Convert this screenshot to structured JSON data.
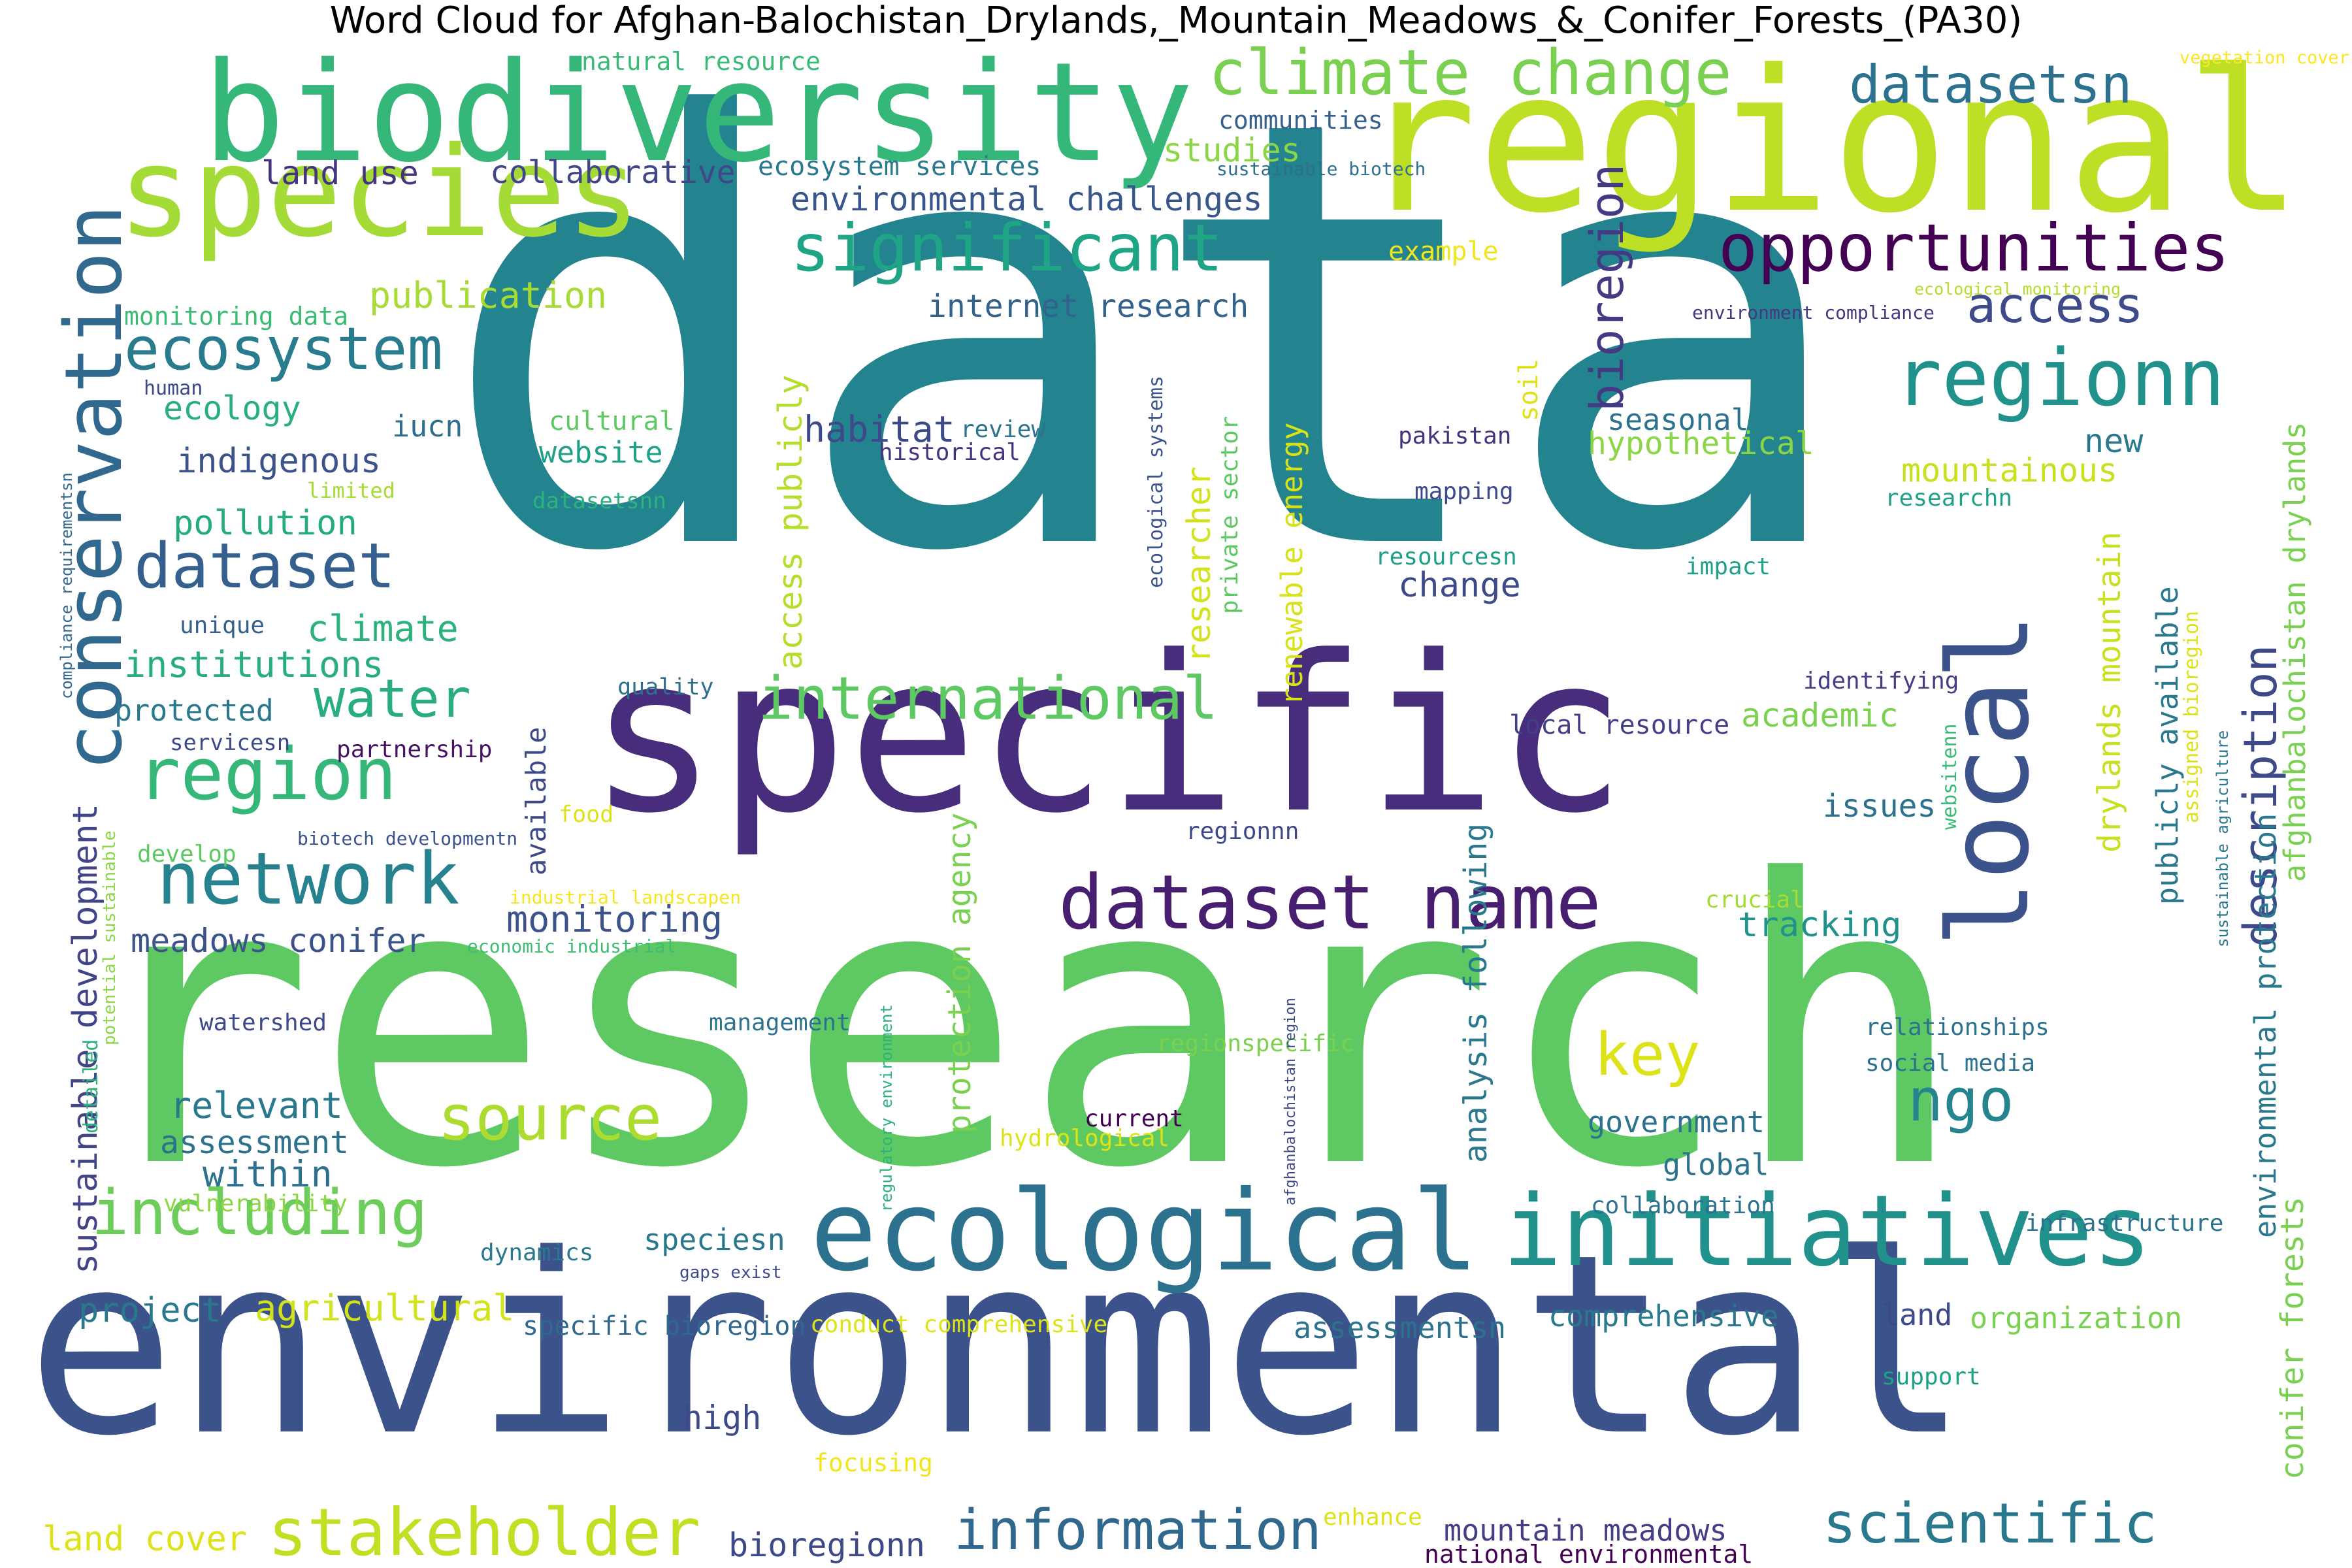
{
  "title": "Word Cloud for Afghan-Balochistan_Drylands,_Mountain_Meadows_&_Conifer_Forests_(PA30)",
  "colors": {
    "background": "#ffffff",
    "title": "#000000"
  },
  "words": [
    {
      "text": "data",
      "color": "#23838e"
    },
    {
      "text": "research",
      "color": "#5ec962"
    },
    {
      "text": "environmental",
      "color": "#3b528b"
    },
    {
      "text": "regional",
      "color": "#bddf26"
    },
    {
      "text": "specific",
      "color": "#472d7b"
    },
    {
      "text": "biodiversity",
      "color": "#35b779"
    },
    {
      "text": "species",
      "color": "#a5db36"
    },
    {
      "text": "ecological",
      "color": "#2c728e"
    },
    {
      "text": "initiatives",
      "color": "#21918c"
    },
    {
      "text": "local",
      "color": "#3b528b"
    },
    {
      "text": "conservation",
      "color": "#31688e"
    },
    {
      "text": "dataset name",
      "color": "#481f70"
    },
    {
      "text": "climate change",
      "color": "#7ad151"
    },
    {
      "text": "opportunities",
      "color": "#440154"
    },
    {
      "text": "significant",
      "color": "#20a486"
    },
    {
      "text": "regionn",
      "color": "#21918c"
    },
    {
      "text": "international",
      "color": "#5ec962"
    },
    {
      "text": "information",
      "color": "#31688e"
    },
    {
      "text": "stakeholder",
      "color": "#c2df23"
    },
    {
      "text": "scientific",
      "color": "#2a788e"
    },
    {
      "text": "ecosystem",
      "color": "#287c8e"
    },
    {
      "text": "dataset",
      "color": "#355f8d"
    },
    {
      "text": "region",
      "color": "#35b779"
    },
    {
      "text": "network",
      "color": "#26828e"
    },
    {
      "text": "including",
      "color": "#6ccd5a"
    },
    {
      "text": "source",
      "color": "#addc30"
    },
    {
      "text": "description",
      "color": "#3e4989"
    },
    {
      "text": "bioregion",
      "color": "#443983"
    },
    {
      "text": "datasetsn",
      "color": "#2c728e"
    },
    {
      "text": "access",
      "color": "#3e4a89"
    },
    {
      "text": "water",
      "color": "#27ad81"
    },
    {
      "text": "key",
      "color": "#dde318"
    },
    {
      "text": "ngo",
      "color": "#25848e"
    },
    {
      "text": "mountain meadows",
      "color": "#433e85"
    },
    {
      "text": "environmental challenges",
      "color": "#39568c"
    },
    {
      "text": "internet research",
      "color": "#33638d"
    },
    {
      "text": "land use",
      "color": "#46337e"
    },
    {
      "text": "collaborative",
      "color": "#404688"
    },
    {
      "text": "publication",
      "color": "#a8db34"
    },
    {
      "text": "studies",
      "color": "#8bd646"
    },
    {
      "text": "ecosystem services",
      "color": "#2a788e"
    },
    {
      "text": "natural resource",
      "color": "#3aba76"
    },
    {
      "text": "communities",
      "color": "#355f8d"
    },
    {
      "text": "sustainable biotech",
      "color": "#2e6f8e"
    },
    {
      "text": "example",
      "color": "#f1e51d"
    },
    {
      "text": "vegetation cover",
      "color": "#fde725"
    },
    {
      "text": "ecological monitoring",
      "color": "#b5de2b"
    },
    {
      "text": "environment compliance",
      "color": "#453781"
    },
    {
      "text": "monitoring data",
      "color": "#3bbb75"
    },
    {
      "text": "ecology",
      "color": "#29af7f"
    },
    {
      "text": "iucn",
      "color": "#2e6e8e"
    },
    {
      "text": "human",
      "color": "#3e4989"
    },
    {
      "text": "limited",
      "color": "#a5db36"
    },
    {
      "text": "indigenous",
      "color": "#3b528b"
    },
    {
      "text": "pollution",
      "color": "#25ab82"
    },
    {
      "text": "unique",
      "color": "#355f8d"
    },
    {
      "text": "climate",
      "color": "#2db27d"
    },
    {
      "text": "institutions",
      "color": "#27ad81"
    },
    {
      "text": "protected",
      "color": "#2a788e"
    },
    {
      "text": "servicesn",
      "color": "#3e4989"
    },
    {
      "text": "partnership",
      "color": "#471164"
    },
    {
      "text": "habitat",
      "color": "#3e4989"
    },
    {
      "text": "review",
      "color": "#2c728e"
    },
    {
      "text": "historical",
      "color": "#46327e"
    },
    {
      "text": "website",
      "color": "#1fa088"
    },
    {
      "text": "cultural",
      "color": "#5ec962"
    },
    {
      "text": "datasetsnn",
      "color": "#2db27d"
    },
    {
      "text": "access publicly",
      "color": "#b5de2b"
    },
    {
      "text": "available",
      "color": "#3e4989"
    },
    {
      "text": "quality",
      "color": "#2e6f8e"
    },
    {
      "text": "food",
      "color": "#dde318"
    },
    {
      "text": "develop",
      "color": "#5ec962"
    },
    {
      "text": "industrial landscapen",
      "color": "#f6e620"
    },
    {
      "text": "economic industrial",
      "color": "#3fbc73"
    },
    {
      "text": "biotech developmentn",
      "color": "#3b528b"
    },
    {
      "text": "monitoring",
      "color": "#3b528b"
    },
    {
      "text": "meadows conifer",
      "color": "#3b528b"
    },
    {
      "text": "relevant",
      "color": "#2a788e"
    },
    {
      "text": "assessment",
      "color": "#2c728e"
    },
    {
      "text": "within",
      "color": "#2c728e"
    },
    {
      "text": "vulnerability",
      "color": "#8bd646"
    },
    {
      "text": "dynamics",
      "color": "#2a788e"
    },
    {
      "text": "gaps exist",
      "color": "#3e4989"
    },
    {
      "text": "project",
      "color": "#2a788e"
    },
    {
      "text": "agricultural",
      "color": "#d2e21b"
    },
    {
      "text": "land cover",
      "color": "#dde318"
    },
    {
      "text": "bioregionn",
      "color": "#3e4989"
    },
    {
      "text": "watershed",
      "color": "#3e4989"
    },
    {
      "text": "management",
      "color": "#2c728e"
    },
    {
      "text": "sustainable development",
      "color": "#414487"
    },
    {
      "text": "potential sustainable",
      "color": "#8bd646"
    },
    {
      "text": "detailed",
      "color": "#2db27d"
    },
    {
      "text": "compliance requirementsn",
      "color": "#31688e"
    },
    {
      "text": "regulatory environment",
      "color": "#2db27d"
    },
    {
      "text": "protection agency",
      "color": "#7ad151"
    },
    {
      "text": "current",
      "color": "#440154"
    },
    {
      "text": "hydrological",
      "color": "#dde318"
    },
    {
      "text": "regionspecific",
      "color": "#7ad151"
    },
    {
      "text": "specific bioregion",
      "color": "#31688e"
    },
    {
      "text": "conduct comprehensive",
      "color": "#dde318"
    },
    {
      "text": "speciesn",
      "color": "#2a788e"
    },
    {
      "text": "high",
      "color": "#3e4989"
    },
    {
      "text": "focusing",
      "color": "#f1e51d"
    },
    {
      "text": "enhance",
      "color": "#dde318"
    },
    {
      "text": "national environmental",
      "color": "#440154"
    },
    {
      "text": "renewable energy",
      "color": "#d8e219"
    },
    {
      "text": "researcher",
      "color": "#d2e21b"
    },
    {
      "text": "private sector",
      "color": "#5ec962"
    },
    {
      "text": "ecological systems",
      "color": "#3b528b"
    },
    {
      "text": "analysis following",
      "color": "#2a788e"
    },
    {
      "text": "local resource",
      "color": "#433e85"
    },
    {
      "text": "regionnn",
      "color": "#3e4989"
    },
    {
      "text": "change",
      "color": "#3e4989"
    },
    {
      "text": "pakistan",
      "color": "#46337e"
    },
    {
      "text": "mapping",
      "color": "#3e4989"
    },
    {
      "text": "resourcesn",
      "color": "#1fa088"
    },
    {
      "text": "soil",
      "color": "#dde318"
    },
    {
      "text": "seasonal",
      "color": "#2c728e"
    },
    {
      "text": "hypothetical",
      "color": "#8bd646"
    },
    {
      "text": "mountainous",
      "color": "#c8e020"
    },
    {
      "text": "new",
      "color": "#2a788e"
    },
    {
      "text": "researchn",
      "color": "#1fa088"
    },
    {
      "text": "impact",
      "color": "#1fa088"
    },
    {
      "text": "identifying",
      "color": "#433e85"
    },
    {
      "text": "academic",
      "color": "#7ad151"
    },
    {
      "text": "issues",
      "color": "#2c728e"
    },
    {
      "text": "crucial",
      "color": "#a5db36"
    },
    {
      "text": "tracking",
      "color": "#21918c"
    },
    {
      "text": "relationships",
      "color": "#2c728e"
    },
    {
      "text": "social media",
      "color": "#2c728e"
    },
    {
      "text": "government",
      "color": "#2c728e"
    },
    {
      "text": "global",
      "color": "#2c728e"
    },
    {
      "text": "collaboration",
      "color": "#2c728e"
    },
    {
      "text": "infrastructure",
      "color": "#2c728e"
    },
    {
      "text": "comprehensive",
      "color": "#2a788e"
    },
    {
      "text": "land",
      "color": "#3e4989"
    },
    {
      "text": "organization",
      "color": "#7ad151"
    },
    {
      "text": "support",
      "color": "#1fa088"
    },
    {
      "text": "assessmentsn",
      "color": "#2c728e"
    },
    {
      "text": "drylands mountain",
      "color": "#c8e020"
    },
    {
      "text": "publicly available",
      "color": "#2a788e"
    },
    {
      "text": "assigned bioregion",
      "color": "#dde318"
    },
    {
      "text": "websitenn",
      "color": "#3bbb75"
    },
    {
      "text": "afghanbalochistan region",
      "color": "#3e4989"
    },
    {
      "text": "environmental protection",
      "color": "#2a788e"
    },
    {
      "text": "afghanbalochistan drylands",
      "color": "#7ad151"
    },
    {
      "text": "sustainable agriculture",
      "color": "#2a788e"
    },
    {
      "text": "conifer forests",
      "color": "#7ad151"
    }
  ]
}
